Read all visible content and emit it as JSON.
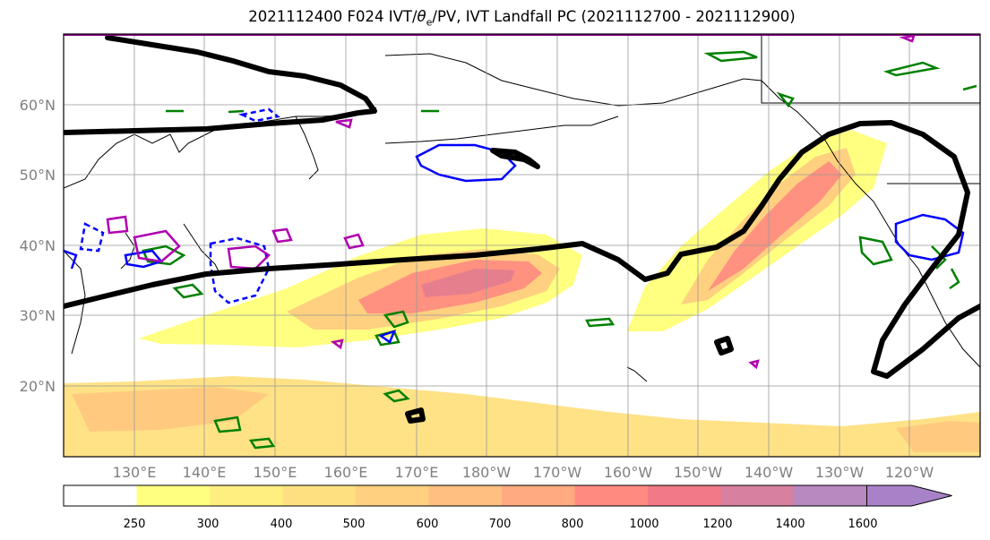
{
  "title": {
    "prefix": "2021112400 F024 IVT/",
    "theta": "θ",
    "theta_sub": "e",
    "suffix": "/PV, IVT Landfall PC (2021112700 - 2021112900)"
  },
  "lat_labels": [
    "60°N",
    "50°N",
    "40°N",
    "30°N",
    "20°N"
  ],
  "lon_labels": [
    "130°E",
    "140°E",
    "150°E",
    "160°E",
    "170°E",
    "180°W",
    "170°W",
    "160°W",
    "150°W",
    "140°W",
    "130°W",
    "120°W"
  ],
  "colorbar": {
    "levels": [
      "250",
      "300",
      "400",
      "500",
      "600",
      "700",
      "800",
      "1000",
      "1200",
      "1400",
      "1600"
    ],
    "colors": [
      "#ffffff",
      "#ffff80",
      "#ffee80",
      "#ffe080",
      "#ffd080",
      "#ffbf80",
      "#ffaa80",
      "#ff8a80",
      "#f07a85",
      "#d880a0",
      "#b888c0",
      "#a882c8"
    ]
  },
  "colors": {
    "ivt_low": "#ffff80",
    "ivt_mid": "#ffd080",
    "ivt_high": "#ff8a80",
    "theta_e": "#008000",
    "pv_pos": "#0000ff",
    "pv_neg": "#b000b0",
    "landfall_pc": "#000000",
    "coast": "#000000",
    "grid": "#999999"
  }
}
